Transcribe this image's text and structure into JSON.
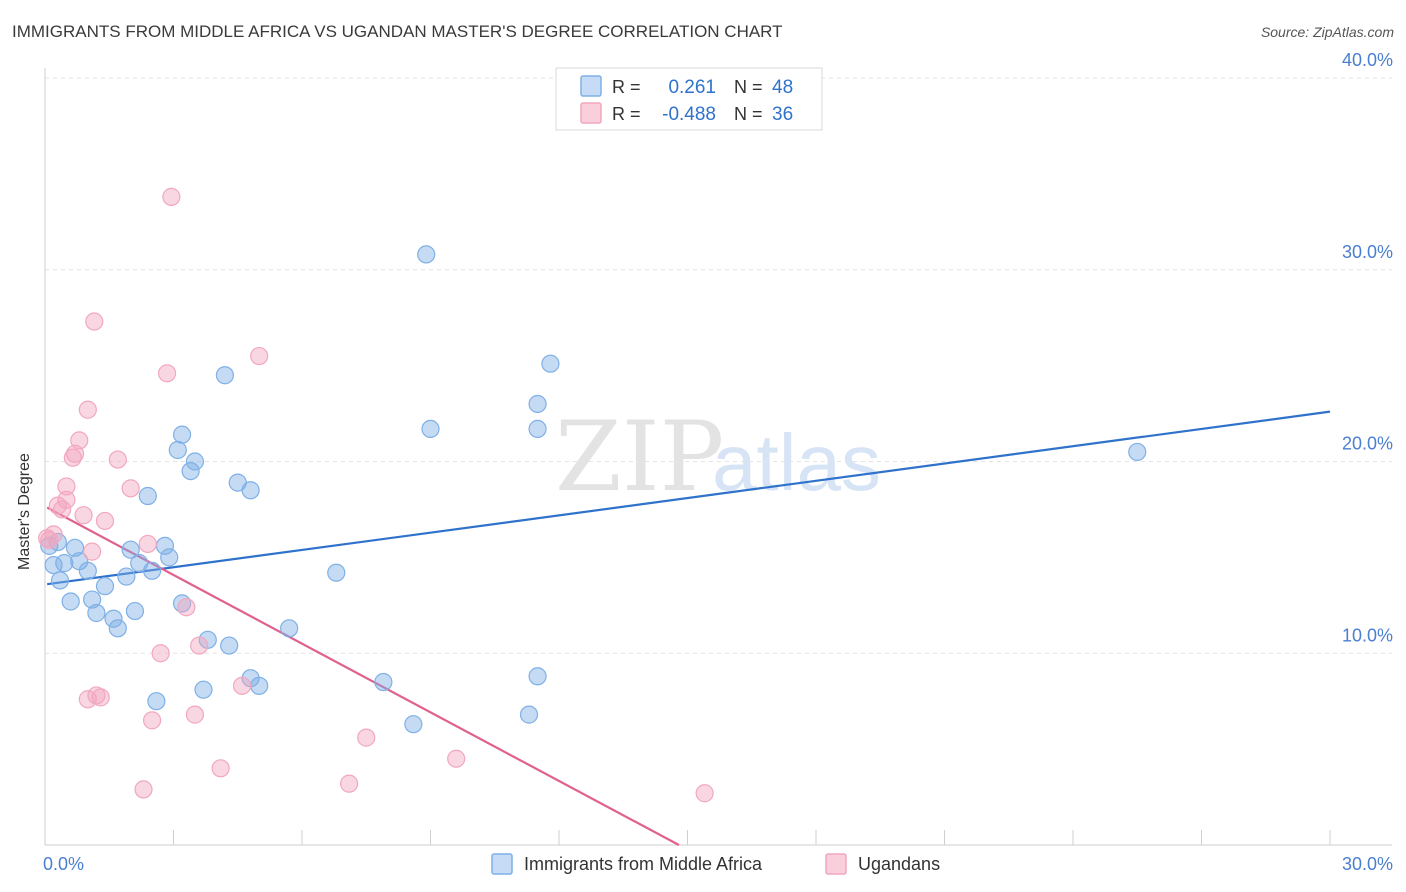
{
  "title": "IMMIGRANTS FROM MIDDLE AFRICA VS UGANDAN MASTER'S DEGREE CORRELATION CHART",
  "source": "Source: ZipAtlas.com",
  "watermark": {
    "zip": "ZIP",
    "atlas": "atlas"
  },
  "legend_box": {
    "r_label": "R =",
    "n_label": "N =",
    "rows": [
      {
        "r": "0.261",
        "n": "48"
      },
      {
        "r": "-0.488",
        "n": "36"
      }
    ]
  },
  "chart_data": {
    "type": "scatter",
    "title": "IMMIGRANTS FROM MIDDLE AFRICA VS UGANDAN MASTER'S DEGREE CORRELATION CHART",
    "xlabel": "",
    "ylabel": "Master's Degree",
    "xlim": [
      0,
      30
    ],
    "ylim": [
      0,
      40
    ],
    "x_tick_labels": [
      "0.0%",
      "30.0%"
    ],
    "y_ticks": [
      10,
      20,
      30,
      40
    ],
    "y_tick_labels": [
      "10.0%",
      "20.0%",
      "30.0%",
      "40.0%"
    ],
    "grid": true,
    "legend_placement": "bottom",
    "series": [
      {
        "name": "Immigrants from Middle Africa",
        "color": "#7fb0e6",
        "line_color": "#2f72cc",
        "trend": {
          "x": [
            0.05,
            30
          ],
          "y": [
            13.6,
            22.6
          ]
        },
        "points": [
          [
            0.1,
            15.6
          ],
          [
            0.2,
            14.6
          ],
          [
            0.3,
            15.8
          ],
          [
            0.35,
            13.8
          ],
          [
            0.45,
            14.7
          ],
          [
            0.6,
            12.7
          ],
          [
            0.7,
            15.5
          ],
          [
            0.8,
            14.8
          ],
          [
            1.0,
            14.3
          ],
          [
            1.1,
            12.8
          ],
          [
            1.2,
            12.1
          ],
          [
            1.4,
            13.5
          ],
          [
            1.6,
            11.8
          ],
          [
            1.7,
            11.3
          ],
          [
            1.9,
            14.0
          ],
          [
            2.0,
            15.4
          ],
          [
            2.1,
            12.2
          ],
          [
            2.2,
            14.7
          ],
          [
            2.4,
            18.2
          ],
          [
            2.5,
            14.3
          ],
          [
            2.6,
            7.5
          ],
          [
            2.8,
            15.6
          ],
          [
            2.9,
            15.0
          ],
          [
            3.1,
            20.6
          ],
          [
            3.2,
            21.4
          ],
          [
            3.2,
            12.6
          ],
          [
            3.4,
            19.5
          ],
          [
            3.5,
            20.0
          ],
          [
            3.7,
            8.1
          ],
          [
            3.8,
            10.7
          ],
          [
            4.2,
            24.5
          ],
          [
            4.3,
            10.4
          ],
          [
            4.5,
            18.9
          ],
          [
            4.8,
            8.7
          ],
          [
            4.8,
            18.5
          ],
          [
            5.0,
            8.3
          ],
          [
            5.7,
            11.3
          ],
          [
            6.8,
            14.2
          ],
          [
            7.9,
            8.5
          ],
          [
            8.6,
            6.3
          ],
          [
            8.9,
            30.8
          ],
          [
            9.0,
            21.7
          ],
          [
            11.3,
            6.8
          ],
          [
            11.5,
            21.7
          ],
          [
            11.5,
            8.8
          ],
          [
            11.5,
            23.0
          ],
          [
            11.8,
            25.1
          ],
          [
            25.5,
            20.5
          ]
        ]
      },
      {
        "name": "Ugandans",
        "color": "#f2a7bf",
        "line_color": "#e0608e",
        "trend": {
          "x": [
            0.05,
            14.8
          ],
          "y": [
            17.6,
            0.0
          ]
        },
        "points": [
          [
            0.1,
            15.9
          ],
          [
            0.2,
            16.2
          ],
          [
            0.3,
            17.7
          ],
          [
            0.4,
            17.5
          ],
          [
            0.5,
            18.0
          ],
          [
            0.5,
            18.7
          ],
          [
            0.65,
            20.2
          ],
          [
            0.7,
            20.4
          ],
          [
            0.8,
            21.1
          ],
          [
            0.9,
            17.2
          ],
          [
            1.0,
            7.6
          ],
          [
            1.0,
            22.7
          ],
          [
            1.1,
            15.3
          ],
          [
            1.15,
            27.3
          ],
          [
            1.2,
            7.8
          ],
          [
            1.3,
            7.7
          ],
          [
            1.4,
            16.9
          ],
          [
            1.7,
            20.1
          ],
          [
            2.0,
            18.6
          ],
          [
            2.3,
            2.9
          ],
          [
            2.4,
            15.7
          ],
          [
            2.5,
            6.5
          ],
          [
            2.7,
            10.0
          ],
          [
            2.85,
            24.6
          ],
          [
            2.95,
            33.8
          ],
          [
            3.3,
            12.4
          ],
          [
            3.5,
            6.8
          ],
          [
            3.6,
            10.4
          ],
          [
            4.1,
            4.0
          ],
          [
            4.6,
            8.3
          ],
          [
            5.0,
            25.5
          ],
          [
            7.1,
            3.2
          ],
          [
            7.5,
            5.6
          ],
          [
            9.6,
            4.5
          ],
          [
            15.4,
            2.7
          ],
          [
            0.05,
            16.0
          ]
        ]
      }
    ]
  }
}
